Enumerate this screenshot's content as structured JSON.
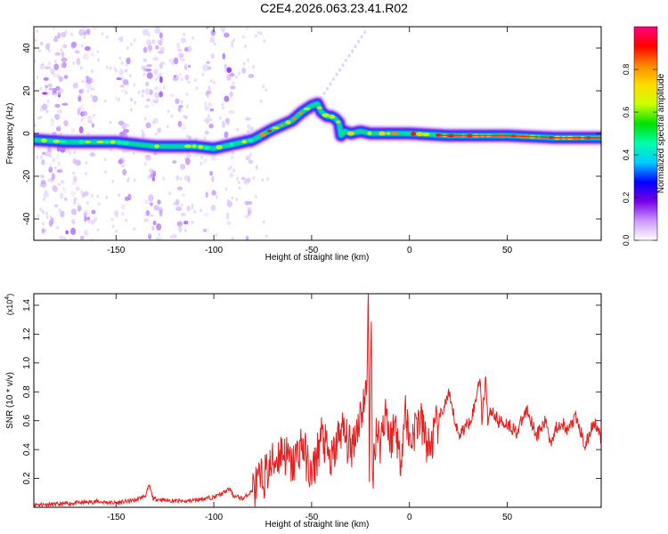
{
  "title": "C2E4.2026.063.23.41.R02",
  "chart_data": [
    {
      "type": "heatmap",
      "title": "C2E4.2026.063.23.41.R02",
      "xlabel": "Height of straight line (km)",
      "ylabel": "Frequency (Hz)",
      "xlim": [
        -192,
        98
      ],
      "ylim": [
        -50,
        50
      ],
      "xticks": [
        -150,
        -100,
        -50,
        0,
        50
      ],
      "xtick_labels": [
        "-150",
        "-100",
        "-50",
        "0",
        "50"
      ],
      "yticks": [
        -40,
        -20,
        0,
        20,
        40
      ],
      "ytick_labels": [
        "-40",
        "-20",
        "0",
        "20",
        "40"
      ],
      "ridge": {
        "x": [
          -192,
          -175,
          -160,
          -150,
          -140,
          -130,
          -120,
          -110,
          -100,
          -90,
          -80,
          -70,
          -60,
          -55,
          -50,
          -47,
          -45,
          -42,
          -40,
          -38,
          -36,
          -35,
          -33,
          -30,
          -25,
          -20,
          -10,
          0,
          20,
          50,
          75,
          98
        ],
        "y": [
          -3,
          -4,
          -4,
          -4,
          -5,
          -6,
          -6,
          -6,
          -7,
          -5,
          -3,
          2,
          6,
          10,
          13,
          14,
          10,
          8,
          8,
          7,
          5,
          -1,
          1,
          0,
          1,
          0,
          0,
          0,
          -1,
          -1,
          -2,
          -2
        ]
      },
      "colorbar": {
        "label": "Normalized spectral amplitude",
        "range": [
          0,
          1
        ],
        "ticks": [
          "0.0",
          "0.2",
          "0.4",
          "0.6",
          "0.8"
        ],
        "colors": [
          "#ffffff",
          "#cc99ff",
          "#7a00e6",
          "#0000ff",
          "#00ccff",
          "#00ffaa",
          "#00e000",
          "#ccff00",
          "#ffdd00",
          "#ff8800",
          "#ff0000",
          "#ff0080"
        ]
      }
    },
    {
      "type": "line",
      "xlabel": "Height of straight line (km)",
      "ylabel": "SNR (10 * v/v)",
      "multiplier": "(x10",
      "multiplier_exp": "4",
      "multiplier_close": ")",
      "xlim": [
        -192,
        98
      ],
      "ylim": [
        0,
        1.48
      ],
      "xticks": [
        -150,
        -100,
        -50,
        0,
        50
      ],
      "xtick_labels": [
        "-150",
        "-100",
        "-50",
        "0",
        "50"
      ],
      "yticks": [
        0.2,
        0.4,
        0.6,
        0.8,
        1.0,
        1.2,
        1.4
      ],
      "ytick_labels": [
        "0.2",
        "0.4",
        "0.6",
        "0.8",
        "1.0",
        "1.2",
        "1.4"
      ],
      "color": "#e62020",
      "series": [
        {
          "x": [
            -192,
            -180,
            -170,
            -160,
            -150,
            -140,
            -135,
            -133,
            -131,
            -125,
            -115,
            -105,
            -100,
            -95,
            -92,
            -90,
            -85,
            -80,
            -75,
            -70,
            -65,
            -60,
            -55,
            -50,
            -45,
            -40,
            -35,
            -30,
            -26,
            -22,
            -21,
            -20.5,
            -19.5,
            -19,
            -17,
            -15,
            -12,
            -10,
            -7,
            -5,
            -2,
            0,
            5,
            10,
            15,
            20,
            25,
            30,
            33,
            36,
            37,
            38,
            39,
            40,
            42,
            45,
            50,
            55,
            60,
            65,
            70,
            72,
            75,
            78,
            80,
            85,
            88,
            90,
            93,
            95,
            98
          ],
          "y": [
            0.02,
            0.02,
            0.03,
            0.04,
            0.03,
            0.05,
            0.08,
            0.15,
            0.06,
            0.05,
            0.04,
            0.06,
            0.07,
            0.1,
            0.13,
            0.08,
            0.06,
            0.12,
            0.2,
            0.3,
            0.4,
            0.28,
            0.45,
            0.2,
            0.5,
            0.3,
            0.55,
            0.4,
            0.6,
            0.78,
            1.48,
            0.3,
            1.32,
            0.2,
            0.55,
            0.45,
            0.7,
            0.45,
            0.6,
            0.3,
            0.68,
            0.45,
            0.62,
            0.4,
            0.6,
            0.78,
            0.5,
            0.58,
            0.68,
            0.92,
            0.6,
            0.75,
            0.92,
            0.6,
            0.68,
            0.6,
            0.58,
            0.52,
            0.68,
            0.5,
            0.6,
            0.45,
            0.55,
            0.6,
            0.52,
            0.62,
            0.5,
            0.42,
            0.55,
            0.6,
            0.45
          ]
        }
      ]
    }
  ]
}
